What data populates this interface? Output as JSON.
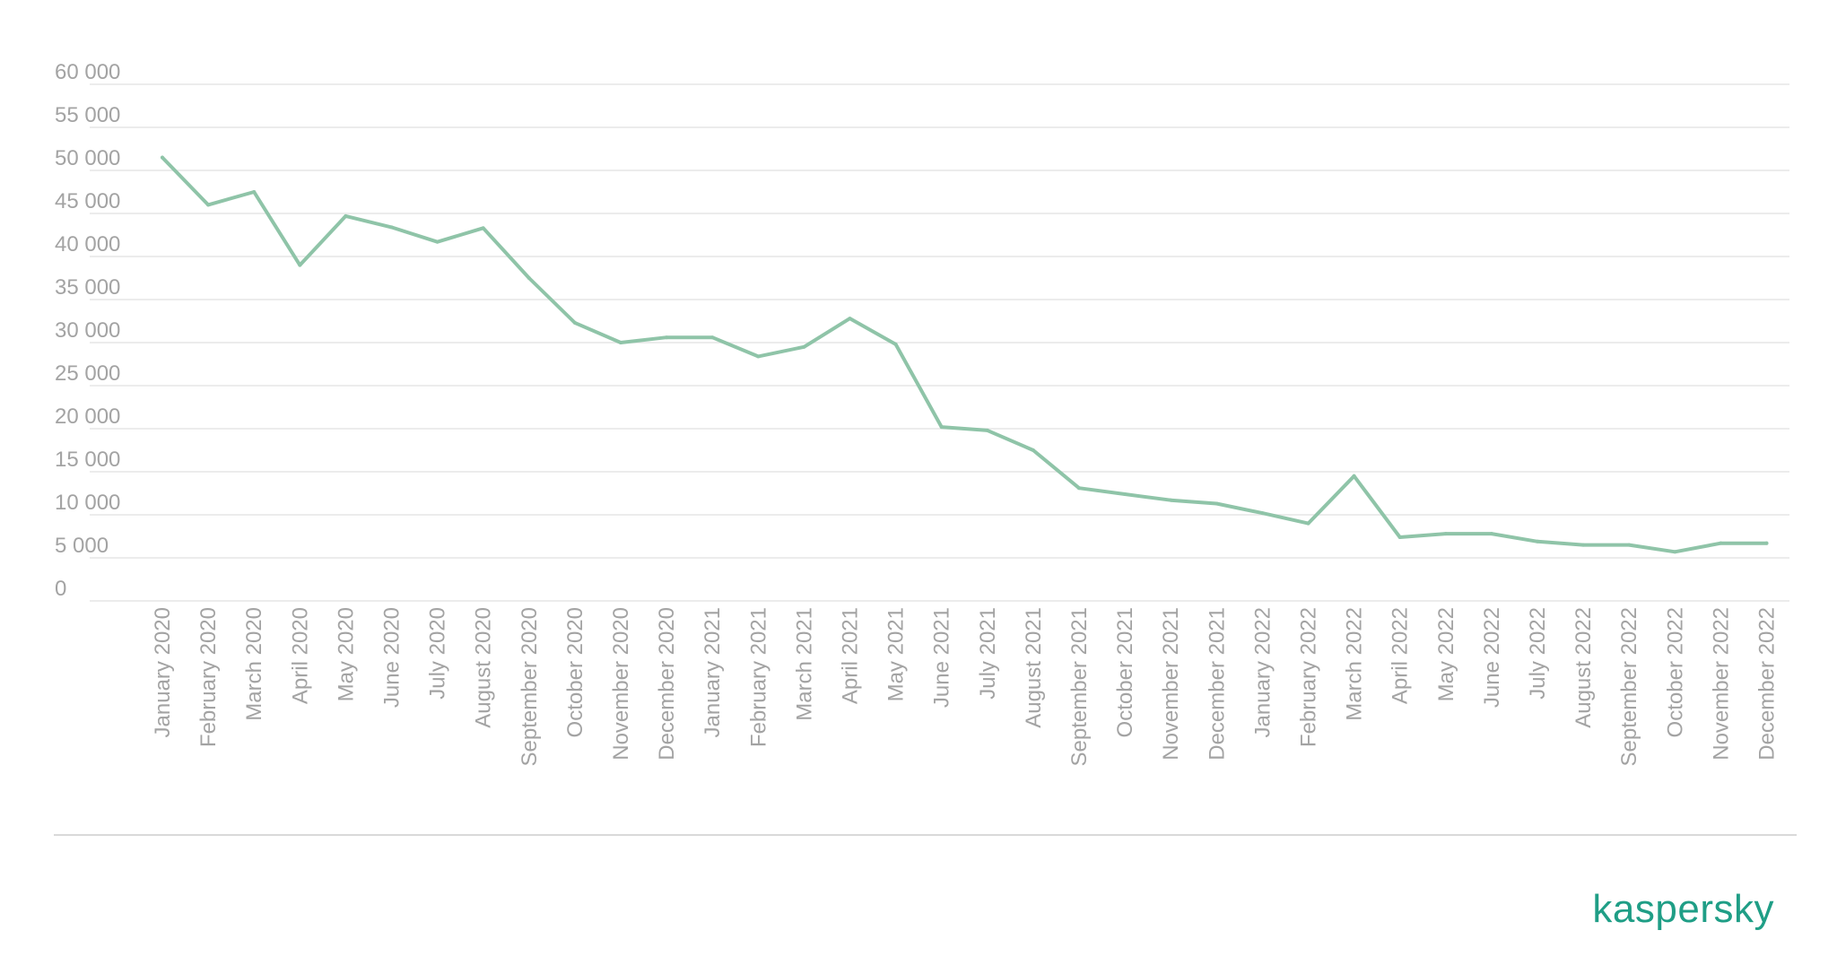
{
  "brand": {
    "logo_text": "kaspersky",
    "color": "#1f9e86"
  },
  "colors": {
    "line": "#8fc4a8",
    "grid": "#e6e6e6",
    "tick_text": "#a3a3a3"
  },
  "chart_data": {
    "type": "line",
    "title": "",
    "xlabel": "",
    "ylabel": "",
    "ylim": [
      0,
      60000
    ],
    "yticks": [
      0,
      5000,
      10000,
      15000,
      20000,
      25000,
      30000,
      35000,
      40000,
      45000,
      50000,
      55000,
      60000
    ],
    "ytick_labels": [
      "0",
      "5 000",
      "10 000",
      "15 000",
      "20 000",
      "25 000",
      "30 000",
      "35 000",
      "40 000",
      "45 000",
      "50 000",
      "55 000",
      "60 000"
    ],
    "grid": true,
    "legend": "none",
    "categories": [
      "January 2020",
      "February 2020",
      "March 2020",
      "April 2020",
      "May 2020",
      "June 2020",
      "July 2020",
      "August 2020",
      "September 2020",
      "October 2020",
      "November 2020",
      "December 2020",
      "January 2021",
      "February 2021",
      "March 2021",
      "April 2021",
      "May 2021",
      "June 2021",
      "July 2021",
      "August 2021",
      "September 2021",
      "October 2021",
      "November 2021",
      "December 2021",
      "January 2022",
      "February 2022",
      "March 2022",
      "April 2022",
      "May 2022",
      "June 2022",
      "July 2022",
      "August 2022",
      "September 2022",
      "October 2022",
      "November 2022",
      "December 2022"
    ],
    "series": [
      {
        "values": [
          51500,
          46000,
          47500,
          39000,
          44700,
          43400,
          41700,
          43300,
          37500,
          32300,
          30000,
          30600,
          30600,
          28400,
          29500,
          32800,
          29800,
          20200,
          19800,
          17500,
          13100,
          12400,
          11700,
          11300,
          10200,
          9000,
          14500,
          7400,
          7800,
          7800,
          6900,
          6500,
          6500,
          5700,
          6700,
          6700
        ]
      }
    ]
  }
}
